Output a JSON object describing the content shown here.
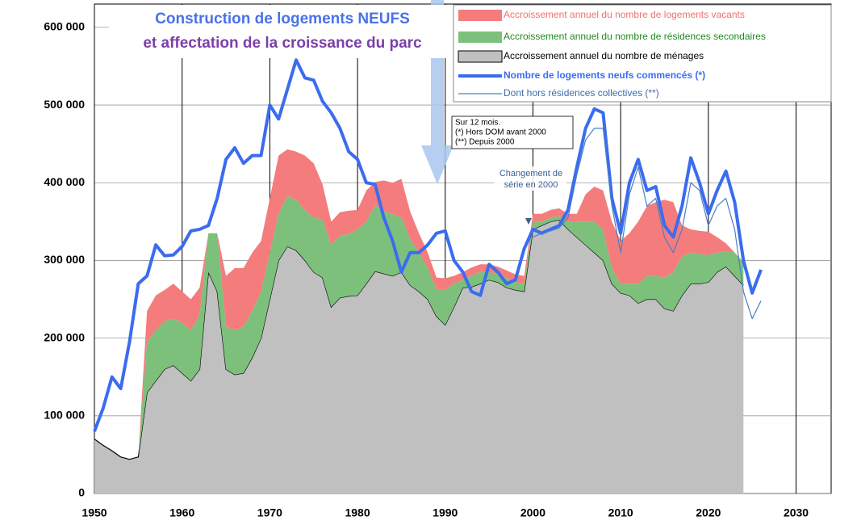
{
  "chart_data": {
    "type": "area",
    "title": [
      "Construction de logements NEUFS",
      "et affectation de la croissance du parc"
    ],
    "annotations": [
      "Sur 12 mois.",
      "(*) Hors DOM avant 2000",
      "(**) Depuis 2000"
    ],
    "note": [
      "Changement de",
      "série en 2000"
    ],
    "x": [
      1950,
      1951,
      1952,
      1953,
      1954,
      1955,
      1956,
      1957,
      1958,
      1959,
      1960,
      1961,
      1962,
      1963,
      1964,
      1965,
      1966,
      1967,
      1968,
      1969,
      1970,
      1971,
      1972,
      1973,
      1974,
      1975,
      1976,
      1977,
      1978,
      1979,
      1980,
      1981,
      1982,
      1983,
      1984,
      1985,
      1986,
      1987,
      1988,
      1989,
      1990,
      1991,
      1992,
      1993,
      1994,
      1995,
      1996,
      1997,
      1998,
      1999,
      2000,
      2001,
      2002,
      2003,
      2004,
      2005,
      2006,
      2007,
      2008,
      2009,
      2010,
      2011,
      2012,
      2013,
      2014,
      2015,
      2016,
      2017,
      2018,
      2019,
      2020,
      2021,
      2022,
      2023,
      2024,
      2025,
      2026
    ],
    "xlim": [
      1950,
      2034
    ],
    "xticks": [
      1950,
      1960,
      1970,
      1980,
      1990,
      2000,
      2010,
      2020,
      2030
    ],
    "ylim": [
      0,
      630000
    ],
    "yticks": [
      {
        "value": 0,
        "label": "0"
      },
      {
        "value": 100000,
        "label": "100 000"
      },
      {
        "value": 200000,
        "label": "200 000"
      },
      {
        "value": 300000,
        "label": "300 000"
      },
      {
        "value": 400000,
        "label": "400 000"
      },
      {
        "value": 500000,
        "label": "500 000"
      },
      {
        "value": 600000,
        "label": "600 000"
      }
    ],
    "grid": true,
    "series": [
      {
        "name": "Accroissement annuel du nombre de logements vacants",
        "type": "area",
        "color": "#f47c7c",
        "text_color": "#f07070",
        "values": [
          0,
          0,
          0,
          0,
          0,
          0,
          40000,
          45000,
          40000,
          45000,
          40000,
          40000,
          35000,
          0,
          0,
          65000,
          80000,
          75000,
          75000,
          65000,
          70000,
          75000,
          60000,
          62000,
          70000,
          70000,
          45000,
          30000,
          30000,
          30000,
          25000,
          40000,
          30000,
          40000,
          40000,
          50000,
          35000,
          25000,
          20000,
          15000,
          15000,
          10000,
          10000,
          10000,
          10000,
          10000,
          10000,
          10000,
          10000,
          10000,
          10000,
          10000,
          10000,
          10000,
          10000,
          10000,
          35000,
          45000,
          50000,
          60000,
          55000,
          65000,
          80000,
          90000,
          95000,
          100000,
          90000,
          40000,
          30000,
          30000,
          30000,
          20000,
          10000,
          0,
          0,
          null,
          null
        ]
      },
      {
        "name": "Accroissement annuel du nombre de résidences secondaires",
        "type": "area",
        "color": "#7cc07c",
        "text_color": "#1e8a1e",
        "values": [
          0,
          0,
          0,
          0,
          0,
          0,
          65000,
          65000,
          62000,
          60000,
          65000,
          65000,
          70000,
          50000,
          75000,
          55000,
          57000,
          60000,
          60000,
          60000,
          60000,
          60000,
          65000,
          65000,
          65000,
          70000,
          75000,
          80000,
          80000,
          80000,
          85000,
          80000,
          85000,
          80000,
          80000,
          70000,
          60000,
          50000,
          40000,
          35000,
          45000,
          30000,
          10000,
          15000,
          15000,
          10000,
          10000,
          12000,
          10000,
          10000,
          10000,
          5000,
          5000,
          5000,
          10000,
          20000,
          30000,
          40000,
          40000,
          20000,
          12000,
          15000,
          25000,
          30000,
          30000,
          40000,
          50000,
          50000,
          40000,
          38000,
          35000,
          25000,
          20000,
          30000,
          30000,
          null,
          null
        ]
      },
      {
        "name": "Accroissement annuel du nombre de ménages",
        "type": "area",
        "color": "#c0c0c0",
        "text_color": "#000000",
        "values": [
          70000,
          62000,
          55000,
          47000,
          44000,
          47000,
          130000,
          145000,
          160000,
          165000,
          155000,
          145000,
          160000,
          285000,
          260000,
          160000,
          153000,
          155000,
          175000,
          200000,
          250000,
          300000,
          318000,
          313000,
          300000,
          285000,
          278000,
          240000,
          252000,
          254000,
          255000,
          270000,
          286000,
          283000,
          280000,
          285000,
          268000,
          260000,
          250000,
          228000,
          217000,
          240000,
          265000,
          266000,
          270000,
          275000,
          272000,
          265000,
          262000,
          260000,
          340000,
          345000,
          350000,
          352000,
          340000,
          330000,
          320000,
          310000,
          300000,
          270000,
          258000,
          255000,
          245000,
          250000,
          250000,
          238000,
          235000,
          255000,
          270000,
          270000,
          272000,
          285000,
          292000,
          280000,
          268000,
          null,
          null
        ]
      },
      {
        "name": "Nombre de logements neufs commencés (*)",
        "type": "line",
        "width": 4,
        "color": "#3b6cf0",
        "text_color": "#3b6cf0",
        "values": [
          80000,
          110000,
          150000,
          135000,
          195000,
          270000,
          280000,
          320000,
          306000,
          307000,
          318000,
          338000,
          340000,
          345000,
          380000,
          430000,
          445000,
          425000,
          435000,
          435000,
          500000,
          482000,
          520000,
          558000,
          535000,
          532000,
          505000,
          490000,
          470000,
          440000,
          430000,
          400000,
          398000,
          355000,
          325000,
          285000,
          310000,
          310000,
          320000,
          335000,
          338000,
          300000,
          285000,
          260000,
          255000,
          295000,
          285000,
          270000,
          275000,
          315000,
          340000,
          335000,
          340000,
          345000,
          365000,
          420000,
          470000,
          495000,
          490000,
          380000,
          335000,
          400000,
          430000,
          390000,
          395000,
          345000,
          330000,
          370000,
          432000,
          400000,
          360000,
          390000,
          415000,
          375000,
          300000,
          258000,
          288000
        ]
      },
      {
        "name": "Dont hors résidences collectives (**)",
        "type": "line",
        "width": 1.2,
        "color": "#4a7fc0",
        "text_color": "#3b6cb0",
        "values": [
          null,
          null,
          null,
          null,
          null,
          null,
          null,
          null,
          null,
          null,
          null,
          null,
          null,
          null,
          null,
          null,
          null,
          null,
          null,
          null,
          null,
          null,
          null,
          null,
          null,
          null,
          null,
          null,
          null,
          null,
          null,
          null,
          null,
          null,
          null,
          null,
          null,
          null,
          null,
          null,
          null,
          null,
          null,
          null,
          null,
          null,
          null,
          null,
          null,
          null,
          330000,
          335000,
          338000,
          342000,
          355000,
          410000,
          455000,
          470000,
          470000,
          370000,
          310000,
          385000,
          420000,
          370000,
          380000,
          330000,
          310000,
          340000,
          400000,
          390000,
          345000,
          370000,
          380000,
          340000,
          260000,
          225000,
          248000
        ]
      }
    ]
  }
}
